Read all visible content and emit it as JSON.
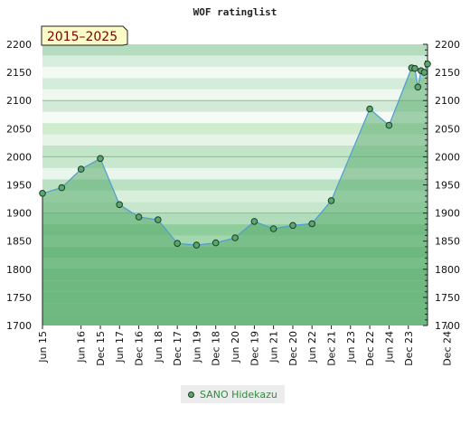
{
  "chart_data": {
    "type": "line",
    "title": "WOF ratinglist",
    "period_label": "2015–2025",
    "ylim": [
      1700,
      2200
    ],
    "y_ticks": [
      1700,
      1750,
      1800,
      1850,
      1900,
      1950,
      2000,
      2050,
      2100,
      2150,
      2200
    ],
    "x_ticks": [
      "Jun 15",
      "Dec 15",
      "Jun 16",
      "Dec 16",
      "Jun 17",
      "Dec 17",
      "Jun 18",
      "Dec 18",
      "Jun 19",
      "Dec 19",
      "Jun 20",
      "Dec 20",
      "Jun 21",
      "Dec 21",
      "Jun 22",
      "Dec 22",
      "Jun 23",
      "Dec 23",
      "Jun 24",
      "Dec 24"
    ],
    "legend": {
      "position": "bottom"
    },
    "series": [
      {
        "name": "SANO Hidekazu",
        "color": "#5aa66e",
        "points": [
          {
            "x": "2015-06",
            "y": 1935
          },
          {
            "x": "2015-12",
            "y": 1945
          },
          {
            "x": "2016-06",
            "y": 1978
          },
          {
            "x": "2016-12",
            "y": 1997
          },
          {
            "x": "2017-06",
            "y": 1915
          },
          {
            "x": "2017-12",
            "y": 1893
          },
          {
            "x": "2018-06",
            "y": 1888
          },
          {
            "x": "2018-12",
            "y": 1846
          },
          {
            "x": "2019-06",
            "y": 1843
          },
          {
            "x": "2019-12",
            "y": 1847
          },
          {
            "x": "2020-06",
            "y": 1856
          },
          {
            "x": "2020-12",
            "y": 1885
          },
          {
            "x": "2021-06",
            "y": 1872
          },
          {
            "x": "2021-12",
            "y": 1878
          },
          {
            "x": "2022-06",
            "y": 1881
          },
          {
            "x": "2022-12",
            "y": 1922
          },
          {
            "x": "2023-12",
            "y": 2085
          },
          {
            "x": "2024-06",
            "y": 2056
          },
          {
            "x": "2025-01",
            "y": 2158
          },
          {
            "x": "2025-02",
            "y": 2157
          },
          {
            "x": "2025-03",
            "y": 2124
          },
          {
            "x": "2025-04",
            "y": 2153
          },
          {
            "x": "2025-05",
            "y": 2150
          },
          {
            "x": "2025-06",
            "y": 2165
          }
        ]
      }
    ]
  }
}
